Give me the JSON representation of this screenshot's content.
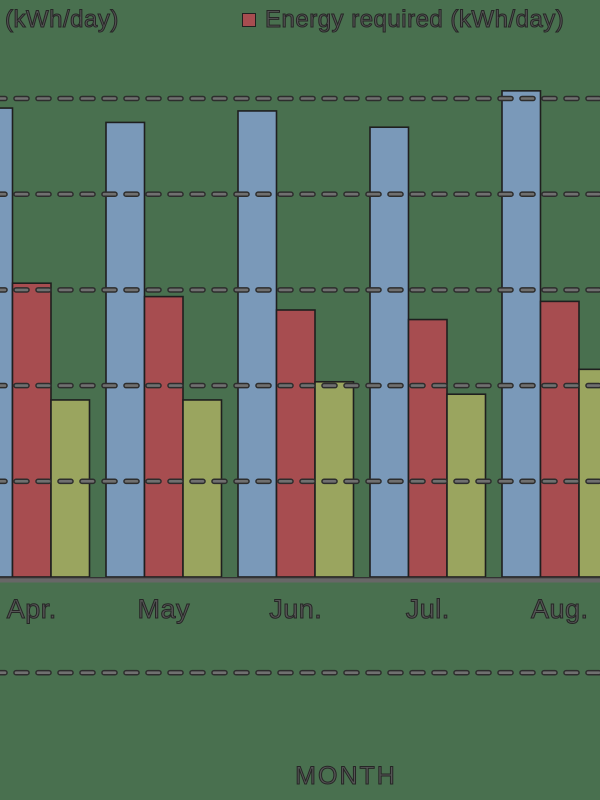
{
  "legend": {
    "items": [
      {
        "label": "(kWh/day)"
      },
      {
        "label": "Energy required (kWh/day)",
        "swatch_color": "#a74d50"
      }
    ]
  },
  "axis": {
    "xlabel": "MONTH"
  },
  "colors": {
    "background": "#49704f",
    "text": "#3b3b3b",
    "gridline_outline": "#2d2d2d",
    "gridline_fill": "#707070",
    "axis_line": "#676767",
    "bar_outline": "#1f1f1f"
  },
  "chart_data": {
    "type": "bar",
    "categories": [
      "Apr.",
      "May",
      "Jun.",
      "Jul.",
      "Aug."
    ],
    "series": [
      {
        "name": "(kWh/day)",
        "color": "#7a99b9",
        "values": [
          4.9,
          4.75,
          4.87,
          4.7,
          5.08
        ]
      },
      {
        "name": "Energy required (kWh/day)",
        "color": "#a74d50",
        "values": [
          3.07,
          2.93,
          2.79,
          2.69,
          2.88
        ]
      },
      {
        "name": "",
        "color": "#9aa55f",
        "values": [
          1.85,
          1.85,
          2.04,
          1.91,
          2.17
        ]
      }
    ],
    "title": "",
    "xlabel": "MONTH",
    "ylabel": "",
    "y_units_note": "y-axis tick labels cropped out of frame; values measured in dashed-gridline divisions above baseline",
    "gridline_values": [
      5,
      4,
      3,
      2,
      1,
      -1
    ],
    "grid": "dashed horizontal, drawn over bars",
    "legend_position": "top",
    "crop_note": "chart cropped: left legend swatch, left/right bar edges and y-axis off-frame"
  }
}
